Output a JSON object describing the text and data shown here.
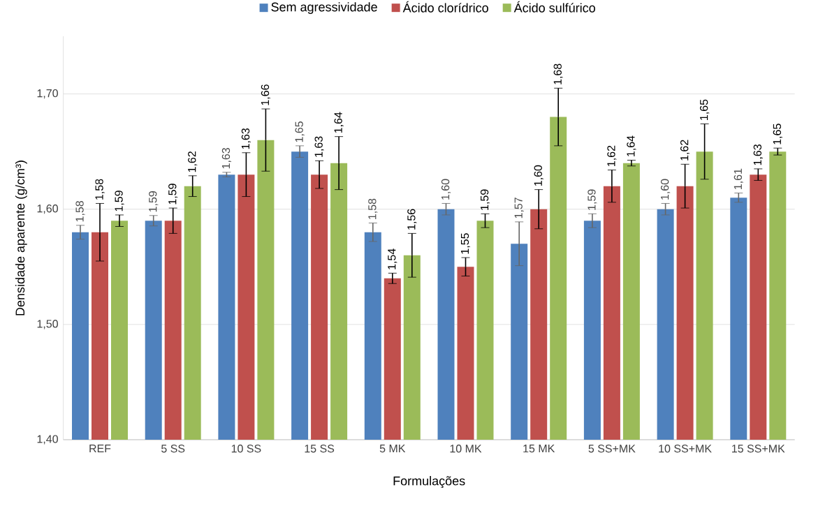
{
  "chart_data": {
    "type": "bar",
    "xlabel": "Formulações",
    "ylabel": "Densidade aparente (g/cm³)",
    "categories": [
      "REF",
      "5 SS",
      "10 SS",
      "15 SS",
      "5 MK",
      "10 MK",
      "15 MK",
      "5 SS+MK",
      "10 SS+MK",
      "15 SS+MK"
    ],
    "ylim": [
      1.4,
      1.75
    ],
    "yticks": [
      {
        "value": 1.4,
        "label": "1,40"
      },
      {
        "value": 1.5,
        "label": "1,50"
      },
      {
        "value": 1.6,
        "label": "1,60"
      },
      {
        "value": 1.7,
        "label": "1,70"
      }
    ],
    "grid": "y",
    "legend": "top",
    "series": [
      {
        "name": "Sem agressividade",
        "color": "#4f81bd",
        "values": [
          1.58,
          1.59,
          1.63,
          1.65,
          1.58,
          1.6,
          1.57,
          1.59,
          1.6,
          1.61
        ],
        "errors": [
          0.006,
          0.0045,
          0.002,
          0.005,
          0.008,
          0.005,
          0.019,
          0.006,
          0.005,
          0.004
        ],
        "value_labels": [
          "1,58",
          "1,59",
          "1,63",
          "1,65",
          "1,58",
          "1,60",
          "1,57",
          "1,59",
          "1,60",
          "1,61"
        ]
      },
      {
        "name": "Ácido clorídrico",
        "color": "#c0504d",
        "values": [
          1.58,
          1.59,
          1.63,
          1.63,
          1.54,
          1.55,
          1.6,
          1.62,
          1.62,
          1.63
        ],
        "errors": [
          0.025,
          0.011,
          0.019,
          0.012,
          0.0045,
          0.008,
          0.017,
          0.014,
          0.019,
          0.005
        ],
        "value_labels": [
          "1,58",
          "1,59",
          "1,63",
          "1,63",
          "1,54",
          "1,55",
          "1,60",
          "1,62",
          "1,62",
          "1,63"
        ]
      },
      {
        "name": "Ácido sulfúrico",
        "color": "#9bbb59",
        "values": [
          1.59,
          1.62,
          1.66,
          1.64,
          1.56,
          1.59,
          1.68,
          1.64,
          1.65,
          1.65
        ],
        "errors": [
          0.005,
          0.009,
          0.027,
          0.023,
          0.019,
          0.006,
          0.025,
          0.0025,
          0.024,
          0.003
        ],
        "value_labels": [
          "1,59",
          "1,62",
          "1,66",
          "1,64",
          "1,56",
          "1,59",
          "1,68",
          "1,64",
          "1,65",
          "1,65"
        ]
      }
    ]
  }
}
